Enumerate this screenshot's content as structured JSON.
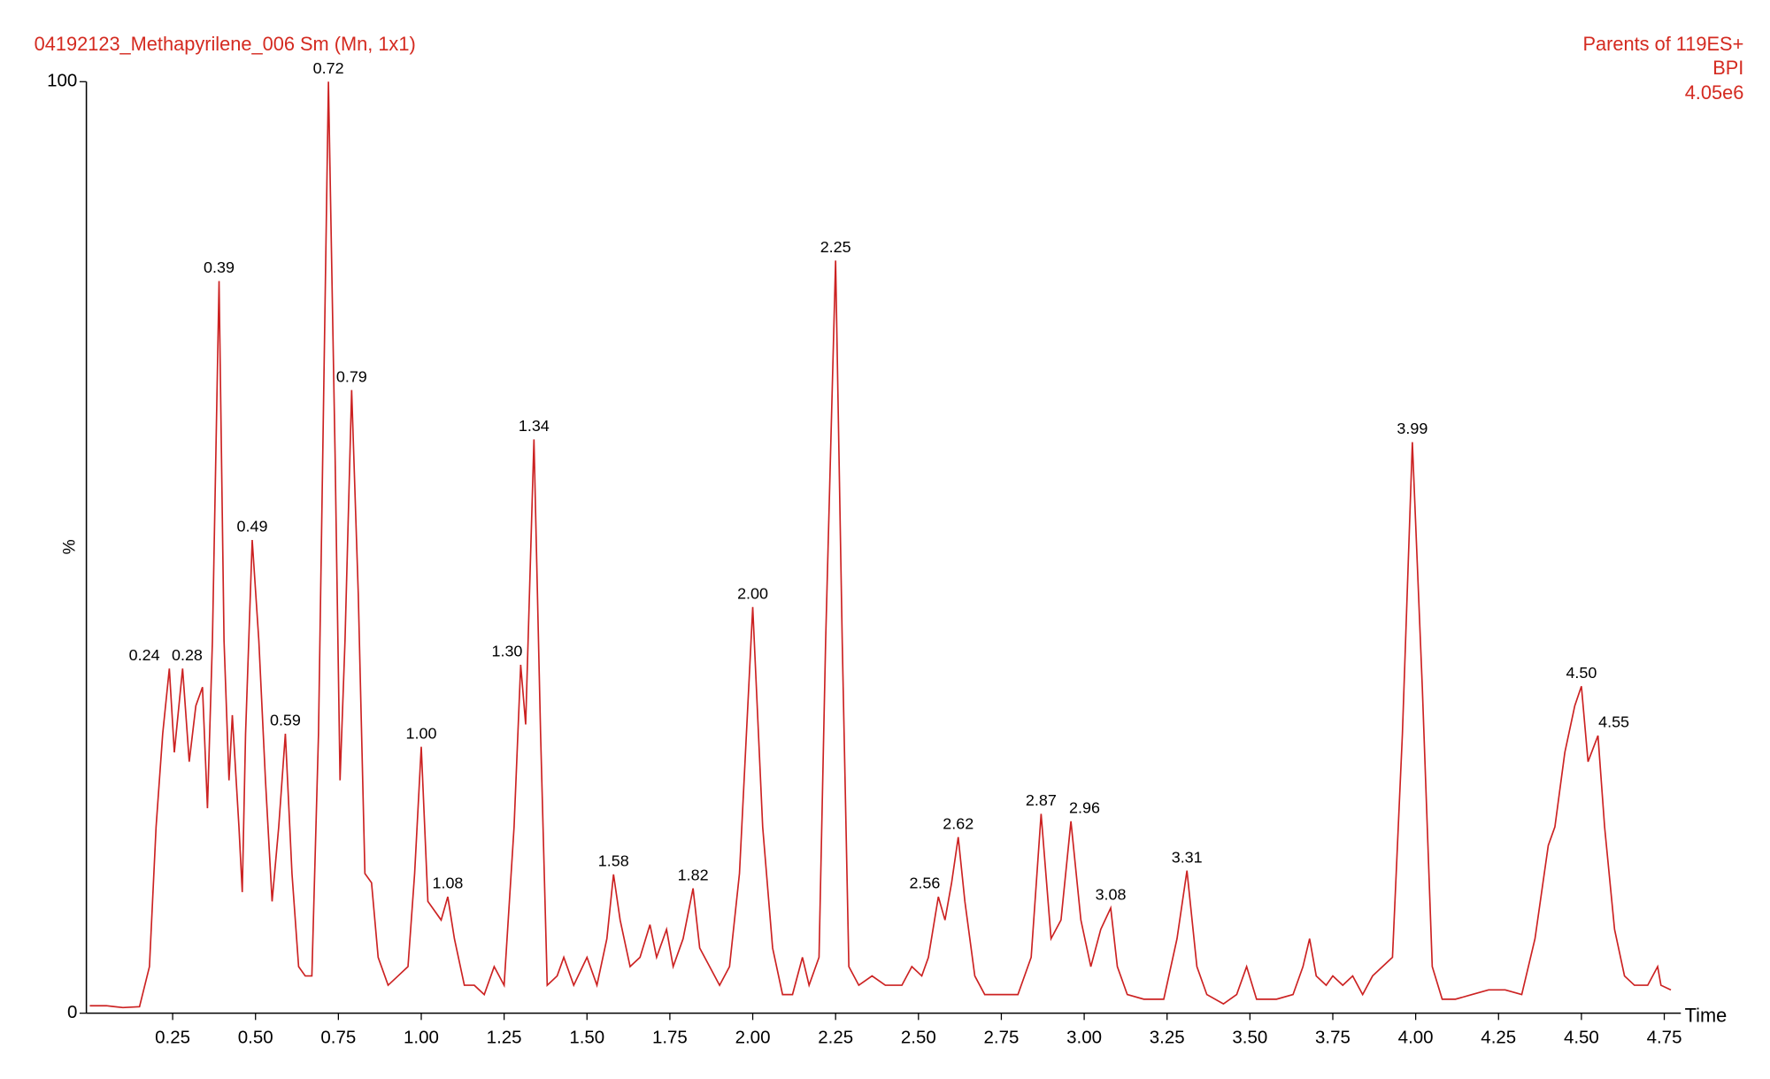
{
  "chart_data": {
    "type": "line",
    "title": "04192123_Methapyrilene_006 Sm (Mn, 1x1)",
    "annotations": [
      "Parents of 119ES+",
      "BPI",
      "4.05e6"
    ],
    "y_label": "%",
    "x_label": "Time",
    "xlim": [
      0,
      4.8
    ],
    "ylim": [
      0,
      100
    ],
    "yticks": [
      0,
      100
    ],
    "xticks": [
      {
        "value": 0.25,
        "label": "0.25"
      },
      {
        "value": 0.5,
        "label": "0.50"
      },
      {
        "value": 0.75,
        "label": "0.75"
      },
      {
        "value": 1,
        "label": "1.00"
      },
      {
        "value": 1.25,
        "label": "1.25"
      },
      {
        "value": 1.5,
        "label": "1.50"
      },
      {
        "value": 1.75,
        "label": "1.75"
      },
      {
        "value": 2,
        "label": "2.00"
      },
      {
        "value": 2.25,
        "label": "2.25"
      },
      {
        "value": 2.5,
        "label": "2.50"
      },
      {
        "value": 2.75,
        "label": "2.75"
      },
      {
        "value": 3,
        "label": "3.00"
      },
      {
        "value": 3.25,
        "label": "3.25"
      },
      {
        "value": 3.5,
        "label": "3.50"
      },
      {
        "value": 3.75,
        "label": "3.75"
      },
      {
        "value": 4,
        "label": "4.00"
      },
      {
        "value": 4.25,
        "label": "4.25"
      },
      {
        "value": 4.5,
        "label": "4.50"
      },
      {
        "value": 4.75,
        "label": "4.75"
      }
    ],
    "x": [
      0,
      0.05,
      0.1,
      0.15,
      0.18,
      0.2,
      0.22,
      0.24,
      0.255,
      0.28,
      0.3,
      0.32,
      0.34,
      0.355,
      0.37,
      0.39,
      0.405,
      0.42,
      0.43,
      0.45,
      0.46,
      0.47,
      0.49,
      0.51,
      0.53,
      0.55,
      0.57,
      0.59,
      0.61,
      0.63,
      0.65,
      0.67,
      0.69,
      0.72,
      0.74,
      0.755,
      0.77,
      0.79,
      0.81,
      0.83,
      0.85,
      0.87,
      0.9,
      0.93,
      0.96,
      0.98,
      1,
      1.02,
      1.04,
      1.06,
      1.08,
      1.1,
      1.13,
      1.16,
      1.19,
      1.22,
      1.25,
      1.28,
      1.3,
      1.315,
      1.34,
      1.36,
      1.38,
      1.41,
      1.43,
      1.46,
      1.5,
      1.53,
      1.56,
      1.58,
      1.6,
      1.63,
      1.66,
      1.69,
      1.71,
      1.74,
      1.76,
      1.79,
      1.82,
      1.84,
      1.87,
      1.9,
      1.93,
      1.96,
      2,
      2.03,
      2.06,
      2.09,
      2.12,
      2.15,
      2.17,
      2.2,
      2.22,
      2.25,
      2.27,
      2.29,
      2.32,
      2.36,
      2.4,
      2.45,
      2.48,
      2.51,
      2.53,
      2.56,
      2.58,
      2.6,
      2.62,
      2.64,
      2.67,
      2.7,
      2.75,
      2.8,
      2.84,
      2.87,
      2.9,
      2.93,
      2.96,
      2.99,
      3.02,
      3.05,
      3.08,
      3.1,
      3.13,
      3.18,
      3.24,
      3.28,
      3.31,
      3.34,
      3.37,
      3.42,
      3.46,
      3.49,
      3.52,
      3.58,
      3.63,
      3.66,
      3.68,
      3.7,
      3.73,
      3.75,
      3.78,
      3.81,
      3.84,
      3.87,
      3.9,
      3.93,
      3.96,
      3.99,
      4.02,
      4.05,
      4.08,
      4.12,
      4.17,
      4.22,
      4.27,
      4.32,
      4.36,
      4.4,
      4.42,
      4.45,
      4.48,
      4.5,
      4.52,
      4.55,
      4.57,
      4.6,
      4.63,
      4.66,
      4.7,
      4.73,
      4.74,
      4.77
    ],
    "series": [
      {
        "name": "BPI",
        "color": "#cc2222",
        "values": [
          0.8,
          0.8,
          0.6,
          0.7,
          5,
          20,
          30,
          37,
          28,
          37,
          27,
          33,
          35,
          22,
          40,
          78.6,
          40,
          25,
          32,
          20,
          13,
          30,
          50.8,
          40,
          25,
          12,
          20,
          30,
          15,
          5,
          4,
          4,
          30,
          100,
          60,
          25,
          40,
          66.9,
          45,
          15,
          14,
          6,
          3,
          4,
          5,
          15,
          28.6,
          12,
          11,
          10,
          12.5,
          8,
          3,
          3,
          2,
          5,
          3,
          20,
          37.4,
          31,
          61.6,
          30,
          3,
          4,
          6,
          3,
          6,
          3,
          8,
          14.9,
          10,
          5,
          6,
          9.5,
          6,
          9,
          5,
          8,
          13.4,
          7,
          5,
          3,
          5,
          15,
          43.6,
          20,
          7,
          2,
          2,
          6,
          3,
          6,
          40,
          80.8,
          40,
          5,
          3,
          4,
          3,
          3,
          5,
          4,
          6,
          12.5,
          10,
          14,
          18.9,
          12,
          4,
          2,
          2,
          2,
          6,
          21.4,
          8,
          10,
          20.6,
          10,
          5,
          9,
          11.3,
          5,
          2,
          1.5,
          1.5,
          8,
          15.3,
          5,
          2,
          1,
          2,
          5,
          1.5,
          1.5,
          2,
          5,
          8,
          4,
          3,
          4,
          3,
          4,
          2,
          4,
          5,
          6,
          30,
          61.3,
          35,
          5,
          1.5,
          1.5,
          2,
          2.5,
          2.5,
          2,
          8,
          18,
          20,
          28,
          33,
          35.1,
          27,
          29.8,
          20,
          9,
          4,
          3,
          3,
          5,
          3,
          2.5
        ]
      }
    ],
    "peaks": [
      {
        "label": "0.24",
        "x": 0.24,
        "y": 37
      },
      {
        "label": "0.28",
        "x": 0.28,
        "y": 37
      },
      {
        "label": "0.39",
        "x": 0.39,
        "y": 78.6
      },
      {
        "label": "0.49",
        "x": 0.49,
        "y": 50.8
      },
      {
        "label": "0.59",
        "x": 0.59,
        "y": 30
      },
      {
        "label": "0.72",
        "x": 0.72,
        "y": 100
      },
      {
        "label": "0.79",
        "x": 0.79,
        "y": 66.9
      },
      {
        "label": "1.00",
        "x": 1.0,
        "y": 28.6
      },
      {
        "label": "1.08",
        "x": 1.08,
        "y": 12.5
      },
      {
        "label": "1.30",
        "x": 1.3,
        "y": 37.4
      },
      {
        "label": "1.34",
        "x": 1.34,
        "y": 61.6
      },
      {
        "label": "1.58",
        "x": 1.58,
        "y": 14.9
      },
      {
        "label": "1.82",
        "x": 1.82,
        "y": 13.4
      },
      {
        "label": "2.00",
        "x": 2.0,
        "y": 43.6
      },
      {
        "label": "2.25",
        "x": 2.25,
        "y": 80.8
      },
      {
        "label": "2.56",
        "x": 2.56,
        "y": 12.5
      },
      {
        "label": "2.62",
        "x": 2.62,
        "y": 18.9
      },
      {
        "label": "2.87",
        "x": 2.87,
        "y": 21.4
      },
      {
        "label": "2.96",
        "x": 2.96,
        "y": 20.6
      },
      {
        "label": "3.08",
        "x": 3.08,
        "y": 11.3
      },
      {
        "label": "3.31",
        "x": 3.31,
        "y": 15.3
      },
      {
        "label": "3.99",
        "x": 3.99,
        "y": 61.3
      },
      {
        "label": "4.50",
        "x": 4.5,
        "y": 35.1
      },
      {
        "label": "4.55",
        "x": 4.55,
        "y": 29.8
      }
    ]
  }
}
